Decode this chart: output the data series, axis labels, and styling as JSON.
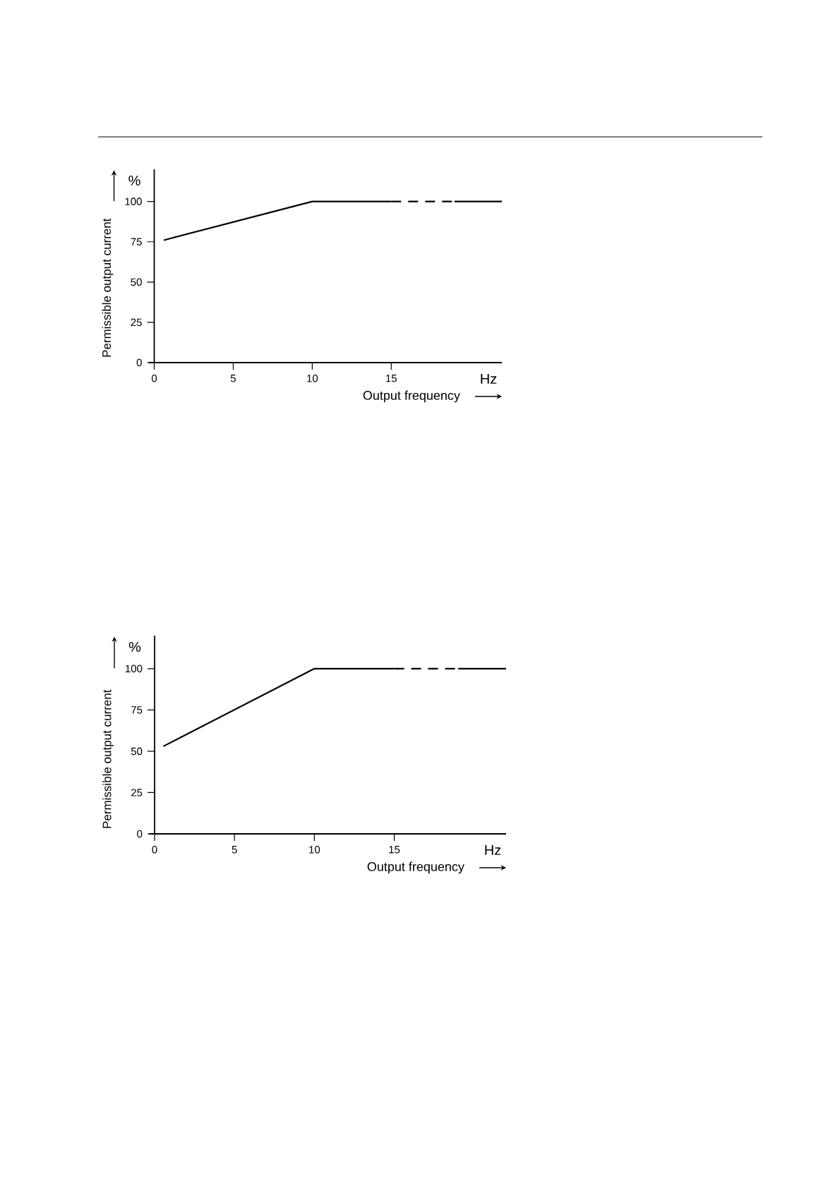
{
  "chart_data": [
    {
      "type": "line",
      "xlabel": "Output frequency",
      "ylabel": "Permissible output current",
      "annotations": [
        "%",
        "Hz"
      ],
      "xlim": [
        0,
        22
      ],
      "ylim": [
        0,
        120
      ],
      "xticks": [
        0,
        5,
        10,
        15
      ],
      "yticks": [
        0,
        25,
        50,
        75,
        100
      ],
      "series": [
        {
          "color": "#000000",
          "line_style": "solid",
          "x": [
            0.6,
            10,
            15
          ],
          "values": [
            76,
            100,
            100
          ]
        },
        {
          "color": "#000000",
          "line_style": "dashed",
          "x": [
            15,
            19
          ],
          "values": [
            100,
            100
          ]
        },
        {
          "color": "#000000",
          "line_style": "solid",
          "x": [
            19,
            22
          ],
          "values": [
            100,
            100
          ]
        }
      ]
    },
    {
      "type": "line",
      "xlabel": "Output frequency",
      "ylabel": "Permissible output current",
      "annotations": [
        "%",
        "Hz"
      ],
      "xlim": [
        0,
        22
      ],
      "ylim": [
        0,
        120
      ],
      "xticks": [
        0,
        5,
        10,
        15
      ],
      "yticks": [
        0,
        25,
        50,
        75,
        100
      ],
      "series": [
        {
          "color": "#000000",
          "line_style": "solid",
          "x": [
            0.55,
            10,
            15
          ],
          "values": [
            53,
            100,
            100
          ]
        },
        {
          "color": "#000000",
          "line_style": "dashed",
          "x": [
            15,
            19
          ],
          "values": [
            100,
            100
          ]
        },
        {
          "color": "#000000",
          "line_style": "solid",
          "x": [
            19,
            22
          ],
          "values": [
            100,
            100
          ]
        }
      ]
    }
  ]
}
